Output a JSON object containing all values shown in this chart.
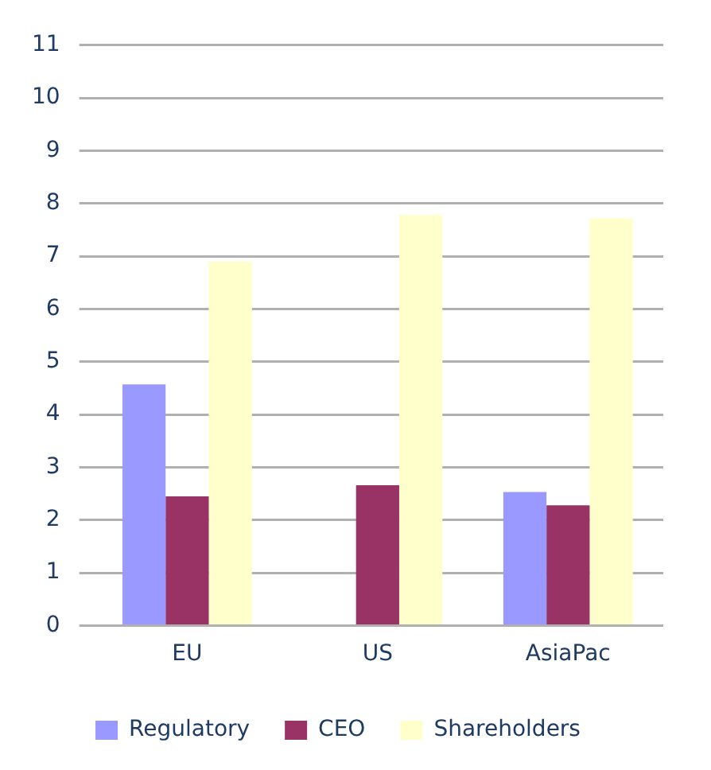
{
  "chart_data": {
    "type": "bar",
    "categories": [
      "EU",
      "US",
      "AsiaPac"
    ],
    "series": [
      {
        "name": "Regulatory",
        "color": "#9999ff",
        "values": [
          4.57,
          null,
          2.53
        ]
      },
      {
        "name": "CEO",
        "color": "#993366",
        "values": [
          2.45,
          2.66,
          2.28
        ]
      },
      {
        "name": "Shareholders",
        "color": "#ffffcc",
        "values": [
          6.9,
          7.78,
          7.72
        ]
      }
    ],
    "ylim": [
      0,
      11
    ],
    "yticks": [
      0,
      1,
      2,
      3,
      4,
      5,
      6,
      7,
      8,
      9,
      10,
      11
    ],
    "grid": "y",
    "legend": "bottom"
  }
}
